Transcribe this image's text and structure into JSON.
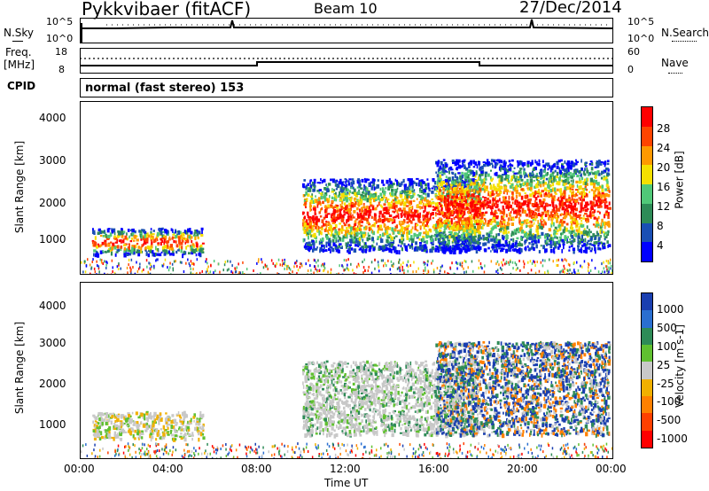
{
  "header": {
    "station": "Pykkvibaer (fitACF)",
    "beam": "Beam 10",
    "date": "27/Dec/2014"
  },
  "noise_panel": {
    "left_label": "N.Sky",
    "right_label": "N.Search",
    "left_ticks": [
      "10^5",
      "10^0"
    ],
    "right_ticks": [
      "10^5",
      "10^0"
    ]
  },
  "freq_panel": {
    "left_label_1": "Freq.",
    "left_label_2": "[MHz]",
    "right_label": "Nave",
    "left_ticks": [
      "18",
      "8"
    ],
    "right_ticks": [
      "60",
      "0"
    ]
  },
  "cpid_panel": {
    "label": "CPID",
    "mode_text": "normal (fast stereo) 153"
  },
  "time_axis": {
    "title": "Time UT",
    "ticks": [
      "00:00",
      "04:00",
      "08:00",
      "12:00",
      "16:00",
      "20:00",
      "00:00"
    ]
  },
  "power_panel": {
    "ylabel": "Slant Range [km]",
    "yticks": [
      "4000",
      "3000",
      "2000",
      "1000"
    ],
    "colorbar_label": "Power [dB]",
    "colorbar_ticks": [
      "28",
      "24",
      "20",
      "16",
      "12",
      "8",
      "4"
    ],
    "colors": [
      "#0000ff",
      "#1a4fb4",
      "#2e8b57",
      "#50c878",
      "#f5e000",
      "#ff9900",
      "#ff4400",
      "#ff0000"
    ]
  },
  "velocity_panel": {
    "ylabel": "Slant Range [km]",
    "yticks": [
      "4000",
      "3000",
      "2000",
      "1000"
    ],
    "colorbar_label": "Velocity [m s-1]",
    "colorbar_ticks": [
      "1000",
      "500",
      "100",
      "25",
      "-25",
      "-100",
      "-500",
      "-1000"
    ],
    "colors": [
      "#1a3fb0",
      "#2a6fd0",
      "#2e8b57",
      "#60c030",
      "#c8c8c8",
      "#f0b000",
      "#ff8000",
      "#ff4000",
      "#ff0000"
    ]
  },
  "chart_data": {
    "type": "heatmap",
    "x_range_hours": [
      0,
      24
    ],
    "y_range_km": [
      180,
      4700
    ],
    "freq_mhz": {
      "times": [
        "00:00",
        "08:00",
        "08:00",
        "18:00",
        "18:00",
        "24:00"
      ],
      "values": [
        10,
        10,
        11,
        11,
        10,
        10
      ]
    },
    "power_regions": [
      {
        "start": "00:30",
        "end": "05:30",
        "range_km": [
          700,
          1400
        ],
        "peak_db": 24
      },
      {
        "start": "10:00",
        "end": "18:00",
        "range_km": [
          800,
          2700
        ],
        "peak_db": 28
      },
      {
        "start": "16:00",
        "end": "23:50",
        "range_km": [
          800,
          3200
        ],
        "peak_db": 28
      }
    ],
    "velocity_regions": [
      {
        "start": "10:00",
        "end": "18:00",
        "range_km": [
          800,
          2700
        ],
        "dominant": "low velocity (ground scatter)"
      },
      {
        "start": "19:00",
        "end": "23:30",
        "range_km": [
          900,
          1600
        ],
        "dominant": "towards radar (500-1000 m/s)"
      }
    ]
  }
}
